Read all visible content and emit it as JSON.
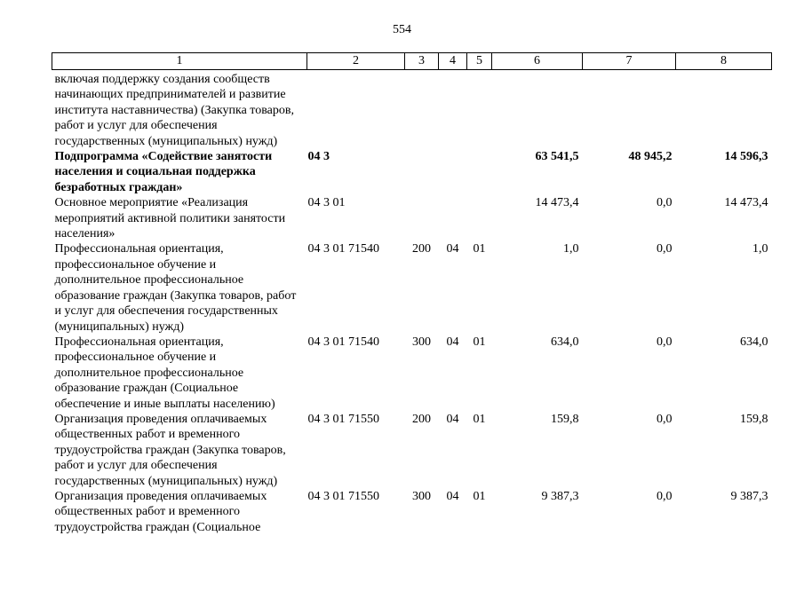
{
  "page": {
    "number": "554"
  },
  "table": {
    "header_columns": [
      "1",
      "2",
      "3",
      "4",
      "5",
      "6",
      "7",
      "8"
    ],
    "rows": [
      {
        "bold": false,
        "cells": [
          "включая поддержку создания сообществ начинающих предпринимателей и развитие института наставничества) (Закупка товаров, работ и услуг для обеспечения государственных (муниципальных) нужд)",
          "",
          "",
          "",
          "",
          "",
          "",
          ""
        ]
      },
      {
        "bold": true,
        "cells": [
          "Подпрограмма «Содействие занятости населения и социальная поддержка безработных граждан»",
          "04 3",
          "",
          "",
          "",
          "63 541,5",
          "48 945,2",
          "14 596,3"
        ]
      },
      {
        "bold": false,
        "cells": [
          "Основное мероприятие «Реализация мероприятий активной политики занятости населения»",
          "04 3 01",
          "",
          "",
          "",
          "14 473,4",
          "0,0",
          "14 473,4"
        ]
      },
      {
        "bold": false,
        "cells": [
          "Профессиональная ориентация, профессиональное обучение и дополнительное профессиональное образование граждан (Закупка товаров, работ и услуг для обеспечения государственных (муниципальных) нужд)",
          "04 3 01 71540",
          "200",
          "04",
          "01",
          "1,0",
          "0,0",
          "1,0"
        ]
      },
      {
        "bold": false,
        "cells": [
          "Профессиональная ориентация, профессиональное обучение и дополнительное профессиональное образование граждан (Социальное обеспечение и иные выплаты населению)",
          "04 3 01 71540",
          "300",
          "04",
          "01",
          "634,0",
          "0,0",
          "634,0"
        ]
      },
      {
        "bold": false,
        "cells": [
          "Организация проведения оплачиваемых общественных работ и временного трудоустройства граждан (Закупка товаров, работ и услуг для обеспечения государственных (муниципальных) нужд)",
          "04 3 01 71550",
          "200",
          "04",
          "01",
          "159,8",
          "0,0",
          "159,8"
        ]
      },
      {
        "bold": false,
        "cells": [
          "Организация проведения оплачиваемых общественных работ и временного трудоустройства граждан (Социальное",
          "04 3 01 71550",
          "300",
          "04",
          "01",
          "9 387,3",
          "0,0",
          "9 387,3"
        ]
      }
    ]
  }
}
